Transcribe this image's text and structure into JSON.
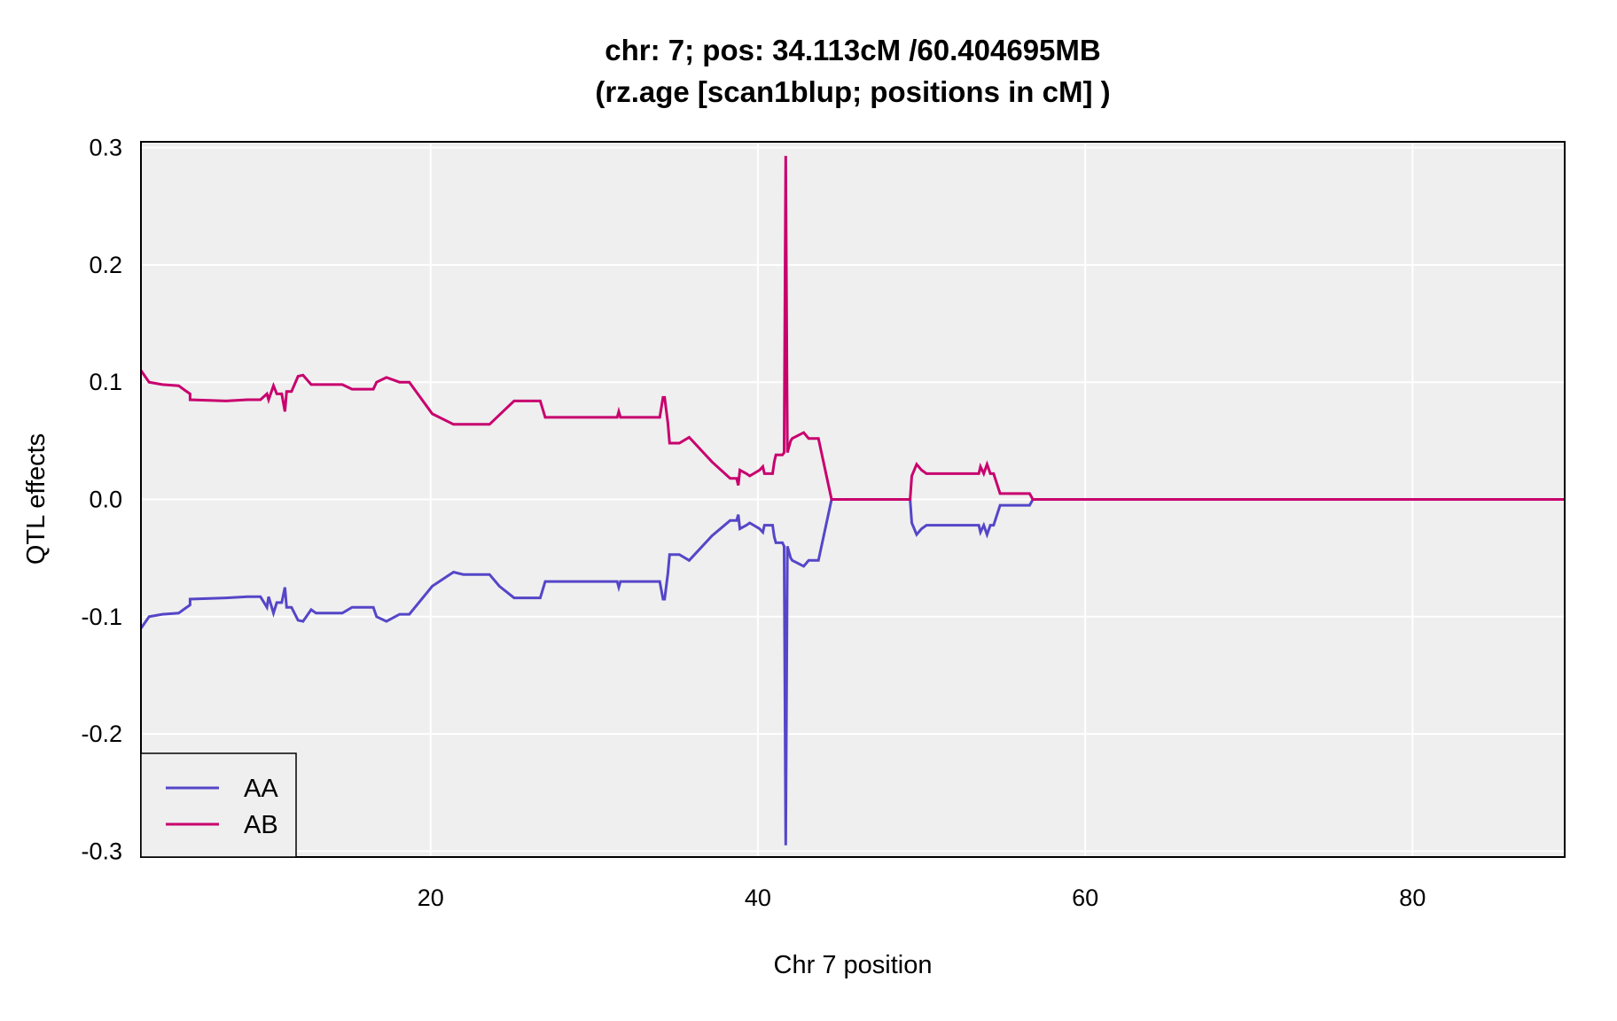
{
  "chart_data": {
    "type": "line",
    "title": "chr: 7; pos: 34.113cM /60.404695MB",
    "subtitle": "(rz.age [scan1blup; positions in cM] )",
    "xlabel": "Chr 7 position",
    "ylabel": "QTL effects",
    "xlim": [
      2.3,
      89.3
    ],
    "ylim": [
      -0.305,
      0.305
    ],
    "xticks": [
      20,
      40,
      60,
      80
    ],
    "yticks": [
      0.3,
      0.2,
      0.1,
      0.0,
      -0.1,
      -0.2,
      -0.3
    ],
    "ytick_labels": [
      "0.3",
      "0.2",
      "0.1",
      "0.0",
      "-0.1",
      "-0.2",
      "-0.3"
    ],
    "grid": true,
    "legend": "bottom-left",
    "background": "#efefef",
    "series": [
      {
        "name": "AA",
        "color": "#5546c8",
        "points": [
          [
            2.3,
            -0.11
          ],
          [
            2.8,
            -0.1
          ],
          [
            3.6,
            -0.098
          ],
          [
            4.6,
            -0.097
          ],
          [
            5.0,
            -0.093
          ],
          [
            5.3,
            -0.09
          ],
          [
            5.3,
            -0.085
          ],
          [
            7.5,
            -0.084
          ],
          [
            8.8,
            -0.083
          ],
          [
            9.6,
            -0.083
          ],
          [
            10.0,
            -0.092
          ],
          [
            10.1,
            -0.083
          ],
          [
            10.4,
            -0.097
          ],
          [
            10.6,
            -0.088
          ],
          [
            10.9,
            -0.088
          ],
          [
            11.1,
            -0.075
          ],
          [
            11.2,
            -0.092
          ],
          [
            11.5,
            -0.092
          ],
          [
            11.9,
            -0.103
          ],
          [
            12.2,
            -0.104
          ],
          [
            12.7,
            -0.094
          ],
          [
            13.0,
            -0.097
          ],
          [
            14.6,
            -0.097
          ],
          [
            15.2,
            -0.092
          ],
          [
            16.5,
            -0.092
          ],
          [
            16.7,
            -0.1
          ],
          [
            17.3,
            -0.104
          ],
          [
            18.1,
            -0.098
          ],
          [
            18.7,
            -0.098
          ],
          [
            20.1,
            -0.074
          ],
          [
            21.4,
            -0.062
          ],
          [
            22.0,
            -0.064
          ],
          [
            22.6,
            -0.064
          ],
          [
            23.6,
            -0.064
          ],
          [
            24.2,
            -0.074
          ],
          [
            25.1,
            -0.084
          ],
          [
            26.7,
            -0.084
          ],
          [
            27.0,
            -0.07
          ],
          [
            31.4,
            -0.07
          ],
          [
            31.5,
            -0.075
          ],
          [
            31.6,
            -0.07
          ],
          [
            34.0,
            -0.07
          ],
          [
            34.2,
            -0.085
          ],
          [
            34.3,
            -0.085
          ],
          [
            34.5,
            -0.063
          ],
          [
            34.6,
            -0.047
          ],
          [
            35.2,
            -0.047
          ],
          [
            35.8,
            -0.052
          ],
          [
            37.2,
            -0.031
          ],
          [
            38.3,
            -0.018
          ],
          [
            38.7,
            -0.018
          ],
          [
            38.8,
            -0.013
          ],
          [
            38.9,
            -0.025
          ],
          [
            39.3,
            -0.022
          ],
          [
            39.5,
            -0.02
          ],
          [
            40.1,
            -0.025
          ],
          [
            40.3,
            -0.028
          ],
          [
            40.4,
            -0.022
          ],
          [
            40.9,
            -0.022
          ],
          [
            41.0,
            -0.032
          ],
          [
            41.1,
            -0.037
          ],
          [
            41.5,
            -0.037
          ],
          [
            41.6,
            -0.04
          ],
          [
            41.7,
            -0.295
          ],
          [
            41.8,
            -0.04
          ],
          [
            42.0,
            -0.05
          ],
          [
            42.1,
            -0.052
          ],
          [
            42.8,
            -0.057
          ],
          [
            43.1,
            -0.052
          ],
          [
            43.7,
            -0.052
          ],
          [
            44.5,
            0.0
          ],
          [
            49.3,
            0.0
          ],
          [
            49.4,
            -0.02
          ],
          [
            49.7,
            -0.03
          ],
          [
            50.0,
            -0.025
          ],
          [
            50.3,
            -0.022
          ],
          [
            53.5,
            -0.022
          ],
          [
            53.6,
            -0.028
          ],
          [
            53.8,
            -0.022
          ],
          [
            54.0,
            -0.03
          ],
          [
            54.2,
            -0.022
          ],
          [
            54.4,
            -0.022
          ],
          [
            54.8,
            -0.005
          ],
          [
            56.6,
            -0.005
          ],
          [
            56.8,
            0.0
          ],
          [
            89.3,
            0.0
          ]
        ]
      },
      {
        "name": "AB",
        "color": "#c8006e",
        "points": [
          [
            2.3,
            0.11
          ],
          [
            2.8,
            0.1
          ],
          [
            3.6,
            0.098
          ],
          [
            4.6,
            0.097
          ],
          [
            5.0,
            0.093
          ],
          [
            5.3,
            0.09
          ],
          [
            5.3,
            0.085
          ],
          [
            7.5,
            0.084
          ],
          [
            8.8,
            0.085
          ],
          [
            9.6,
            0.085
          ],
          [
            10.0,
            0.09
          ],
          [
            10.1,
            0.085
          ],
          [
            10.4,
            0.097
          ],
          [
            10.6,
            0.09
          ],
          [
            10.9,
            0.09
          ],
          [
            11.1,
            0.075
          ],
          [
            11.2,
            0.092
          ],
          [
            11.5,
            0.092
          ],
          [
            11.9,
            0.105
          ],
          [
            12.2,
            0.106
          ],
          [
            12.7,
            0.098
          ],
          [
            13.0,
            0.098
          ],
          [
            14.6,
            0.098
          ],
          [
            15.2,
            0.094
          ],
          [
            16.5,
            0.094
          ],
          [
            16.7,
            0.1
          ],
          [
            17.3,
            0.104
          ],
          [
            18.1,
            0.1
          ],
          [
            18.7,
            0.1
          ],
          [
            20.1,
            0.073
          ],
          [
            21.4,
            0.064
          ],
          [
            22.0,
            0.064
          ],
          [
            22.6,
            0.064
          ],
          [
            23.6,
            0.064
          ],
          [
            24.2,
            0.072
          ],
          [
            25.1,
            0.084
          ],
          [
            26.7,
            0.084
          ],
          [
            27.0,
            0.07
          ],
          [
            31.4,
            0.07
          ],
          [
            31.5,
            0.075
          ],
          [
            31.6,
            0.07
          ],
          [
            34.0,
            0.07
          ],
          [
            34.2,
            0.087
          ],
          [
            34.3,
            0.087
          ],
          [
            34.5,
            0.065
          ],
          [
            34.6,
            0.048
          ],
          [
            35.2,
            0.048
          ],
          [
            35.8,
            0.053
          ],
          [
            37.2,
            0.032
          ],
          [
            38.3,
            0.018
          ],
          [
            38.7,
            0.018
          ],
          [
            38.8,
            0.012
          ],
          [
            38.9,
            0.025
          ],
          [
            39.3,
            0.022
          ],
          [
            39.5,
            0.02
          ],
          [
            40.1,
            0.025
          ],
          [
            40.3,
            0.028
          ],
          [
            40.4,
            0.022
          ],
          [
            40.9,
            0.022
          ],
          [
            41.0,
            0.032
          ],
          [
            41.1,
            0.038
          ],
          [
            41.5,
            0.038
          ],
          [
            41.6,
            0.04
          ],
          [
            41.7,
            0.293
          ],
          [
            41.8,
            0.04
          ],
          [
            42.0,
            0.05
          ],
          [
            42.1,
            0.052
          ],
          [
            42.8,
            0.057
          ],
          [
            43.1,
            0.052
          ],
          [
            43.7,
            0.052
          ],
          [
            44.5,
            0.0
          ],
          [
            49.3,
            0.0
          ],
          [
            49.4,
            0.02
          ],
          [
            49.7,
            0.03
          ],
          [
            50.0,
            0.025
          ],
          [
            50.3,
            0.022
          ],
          [
            53.5,
            0.022
          ],
          [
            53.6,
            0.028
          ],
          [
            53.8,
            0.022
          ],
          [
            54.0,
            0.03
          ],
          [
            54.2,
            0.022
          ],
          [
            54.4,
            0.022
          ],
          [
            54.8,
            0.005
          ],
          [
            56.6,
            0.005
          ],
          [
            56.8,
            0.0
          ],
          [
            89.3,
            0.0
          ]
        ]
      }
    ]
  }
}
